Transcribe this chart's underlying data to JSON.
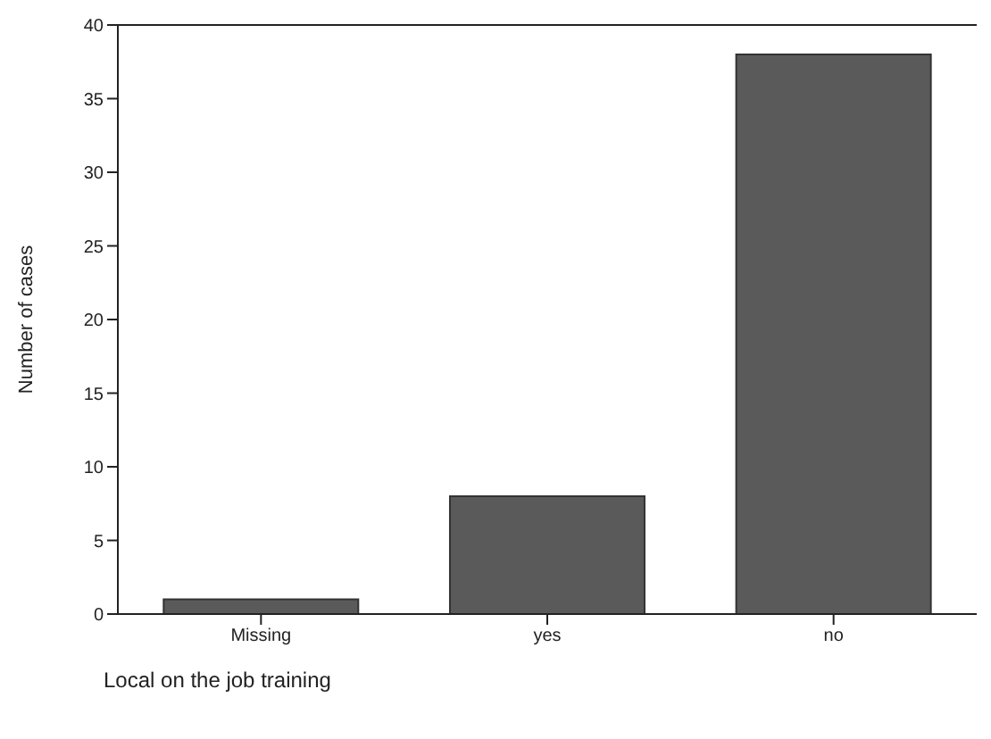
{
  "chart_data": {
    "type": "bar",
    "xlabel": "Local on the job training",
    "ylabel": "Number of cases",
    "categories": [
      "Missing",
      "yes",
      "no"
    ],
    "values": [
      1,
      8,
      38
    ],
    "color": "#5a5a5a",
    "ylim": [
      0,
      40
    ],
    "yticks": [
      0,
      5,
      10,
      15,
      20,
      25,
      30,
      35,
      40
    ],
    "grid": false
  }
}
